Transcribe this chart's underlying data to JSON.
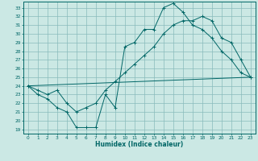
{
  "xlabel": "Humidex (Indice chaleur)",
  "bg_color": "#cbe8e4",
  "grid_color": "#88bbbb",
  "line_color": "#006666",
  "xlim": [
    -0.5,
    23.5
  ],
  "ylim": [
    18.5,
    33.7
  ],
  "yticks": [
    19,
    20,
    21,
    22,
    23,
    24,
    25,
    26,
    27,
    28,
    29,
    30,
    31,
    32,
    33
  ],
  "xticks": [
    0,
    1,
    2,
    3,
    4,
    5,
    6,
    7,
    8,
    9,
    10,
    11,
    12,
    13,
    14,
    15,
    16,
    17,
    18,
    19,
    20,
    21,
    22,
    23
  ],
  "line1_x": [
    0,
    1,
    2,
    3,
    4,
    5,
    6,
    7,
    8,
    9,
    10,
    11,
    12,
    13,
    14,
    15,
    16,
    17,
    18,
    19,
    20,
    21,
    22,
    23
  ],
  "line1_y": [
    24.0,
    23.0,
    22.5,
    21.5,
    21.0,
    19.2,
    19.2,
    19.2,
    23.0,
    21.5,
    28.5,
    29.0,
    30.5,
    30.5,
    33.0,
    33.5,
    32.5,
    31.0,
    30.5,
    29.5,
    28.0,
    27.0,
    25.5,
    25.0
  ],
  "line2_x": [
    0,
    1,
    2,
    3,
    4,
    5,
    6,
    7,
    8,
    9,
    10,
    11,
    12,
    13,
    14,
    15,
    16,
    17,
    18,
    19,
    20,
    21,
    22,
    23
  ],
  "line2_y": [
    24.0,
    23.5,
    23.0,
    23.5,
    22.0,
    21.0,
    21.5,
    22.0,
    23.5,
    24.5,
    25.5,
    26.5,
    27.5,
    28.5,
    30.0,
    31.0,
    31.5,
    31.5,
    32.0,
    31.5,
    29.5,
    29.0,
    27.0,
    25.0
  ],
  "line3_x": [
    0,
    23
  ],
  "line3_y": [
    24.0,
    25.0
  ]
}
